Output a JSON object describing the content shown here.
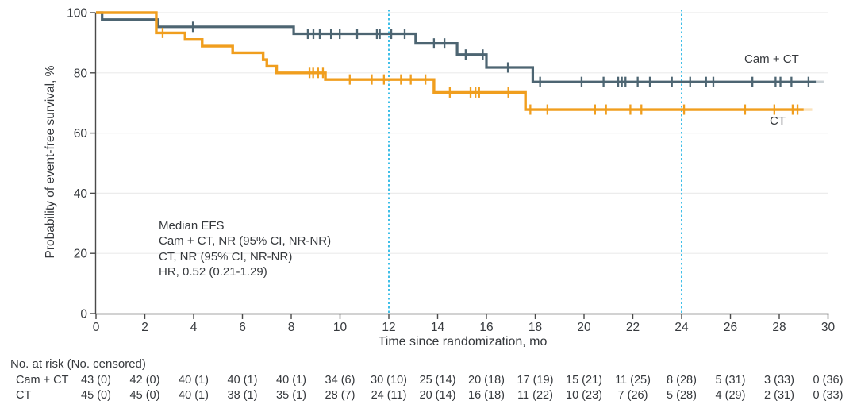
{
  "colors": {
    "camct": "#4d6572",
    "ct": "#f09e1e",
    "reference_line": "#3fbfe8",
    "grid": "#ececec",
    "axis": "#4a4a4a",
    "text": "#36393d",
    "background": "#ffffff"
  },
  "plot": {
    "y_label": "Probability of event-free survival, %",
    "x_label": "Time since randomization, mo",
    "series_labels": {
      "camct": "Cam + CT",
      "ct": "CT"
    }
  },
  "annotation": {
    "lines": [
      "Median EFS",
      "Cam + CT, NR (95% CI, NR-NR)",
      "CT, NR (95% CI, NR-NR)",
      "HR, 0.52 (0.21-1.29)"
    ]
  },
  "risk_table": {
    "header": "No. at risk (No. censored)",
    "months": [
      0,
      2,
      4,
      6,
      8,
      10,
      12,
      14,
      16,
      18,
      20,
      22,
      24,
      26,
      28,
      30
    ],
    "rows": [
      {
        "label": "Cam + CT",
        "cells": [
          "43 (0)",
          "42 (0)",
          "40 (1)",
          "40 (1)",
          "40 (1)",
          "34 (6)",
          "30 (10)",
          "25 (14)",
          "20 (18)",
          "17 (19)",
          "15 (21)",
          "11 (25)",
          "8 (28)",
          "5 (31)",
          "3 (33)",
          "0 (36)"
        ]
      },
      {
        "label": "CT",
        "cells": [
          "45 (0)",
          "45 (0)",
          "40 (1)",
          "38 (1)",
          "35 (1)",
          "28 (7)",
          "24 (11)",
          "20 (14)",
          "16 (18)",
          "11 (22)",
          "10 (23)",
          "7 (26)",
          "5 (28)",
          "4 (29)",
          "2 (31)",
          "0 (33)"
        ]
      }
    ]
  },
  "chart_data": {
    "type": "line",
    "subtype": "kaplan-meier-step",
    "title": "",
    "xlabel": "Time since randomization, mo",
    "ylabel": "Probability of event-free survival, %",
    "xlim": [
      0,
      30
    ],
    "ylim": [
      0,
      100
    ],
    "x_ticks": [
      0,
      2,
      4,
      6,
      8,
      10,
      12,
      14,
      16,
      18,
      20,
      22,
      24,
      26,
      28,
      30
    ],
    "y_ticks": [
      0,
      20,
      40,
      60,
      80,
      100
    ],
    "grid_y": [
      20,
      40,
      60,
      80,
      100
    ],
    "reference_lines_x": [
      12,
      24
    ],
    "legend_position": "inline-right",
    "series": [
      {
        "name": "Cam + CT",
        "color": "#4d6572",
        "steps": [
          [
            0,
            100
          ],
          [
            0.25,
            97.7
          ],
          [
            2.55,
            95.3
          ],
          [
            8.1,
            93.0
          ],
          [
            13.1,
            89.8
          ],
          [
            14.8,
            86.1
          ],
          [
            16.0,
            81.8
          ],
          [
            17.9,
            77.0
          ]
        ],
        "end": 29.5,
        "fade_to": 29.82,
        "censors": [
          [
            3.97,
            95.3
          ],
          [
            8.68,
            93.0
          ],
          [
            8.91,
            93.0
          ],
          [
            9.17,
            93.0
          ],
          [
            9.63,
            93.0
          ],
          [
            9.99,
            93.0
          ],
          [
            10.7,
            93.0
          ],
          [
            11.51,
            93.0
          ],
          [
            11.63,
            93.0
          ],
          [
            12.1,
            93.0
          ],
          [
            12.65,
            93.0
          ],
          [
            13.85,
            89.8
          ],
          [
            14.28,
            89.8
          ],
          [
            15.15,
            86.1
          ],
          [
            15.85,
            86.1
          ],
          [
            16.88,
            81.8
          ],
          [
            18.2,
            77.0
          ],
          [
            19.9,
            77.0
          ],
          [
            20.8,
            77.0
          ],
          [
            21.4,
            77.0
          ],
          [
            21.55,
            77.0
          ],
          [
            21.7,
            77.0
          ],
          [
            22.2,
            77.0
          ],
          [
            22.7,
            77.0
          ],
          [
            23.6,
            77.0
          ],
          [
            24.35,
            77.0
          ],
          [
            25.0,
            77.0
          ],
          [
            25.3,
            77.0
          ],
          [
            26.9,
            77.0
          ],
          [
            27.85,
            77.0
          ],
          [
            28.05,
            77.0
          ],
          [
            28.5,
            77.0
          ],
          [
            29.2,
            77.0
          ]
        ]
      },
      {
        "name": "CT",
        "color": "#f09e1e",
        "steps": [
          [
            0,
            100
          ],
          [
            2.47,
            93.3
          ],
          [
            3.65,
            91.1
          ],
          [
            4.35,
            88.9
          ],
          [
            5.6,
            86.7
          ],
          [
            6.85,
            84.4
          ],
          [
            7.0,
            82.2
          ],
          [
            7.4,
            80.0
          ],
          [
            9.4,
            77.8
          ],
          [
            13.85,
            73.5
          ],
          [
            17.6,
            67.8
          ]
        ],
        "end": 29.0,
        "fade_to": 29.35,
        "censors": [
          [
            2.73,
            93.3
          ],
          [
            8.75,
            80.0
          ],
          [
            8.9,
            80.0
          ],
          [
            9.1,
            80.0
          ],
          [
            9.3,
            80.0
          ],
          [
            10.4,
            77.8
          ],
          [
            11.3,
            77.8
          ],
          [
            11.8,
            77.8
          ],
          [
            12.5,
            77.8
          ],
          [
            12.9,
            77.8
          ],
          [
            13.5,
            77.8
          ],
          [
            14.5,
            73.5
          ],
          [
            15.35,
            73.5
          ],
          [
            15.55,
            73.5
          ],
          [
            15.7,
            73.5
          ],
          [
            16.9,
            73.5
          ],
          [
            17.8,
            67.8
          ],
          [
            18.5,
            67.8
          ],
          [
            20.45,
            67.8
          ],
          [
            20.9,
            67.8
          ],
          [
            21.9,
            67.8
          ],
          [
            22.35,
            67.8
          ],
          [
            24.1,
            67.8
          ],
          [
            26.6,
            67.8
          ],
          [
            27.8,
            67.8
          ],
          [
            28.55,
            67.8
          ],
          [
            28.75,
            67.8
          ]
        ]
      }
    ]
  }
}
